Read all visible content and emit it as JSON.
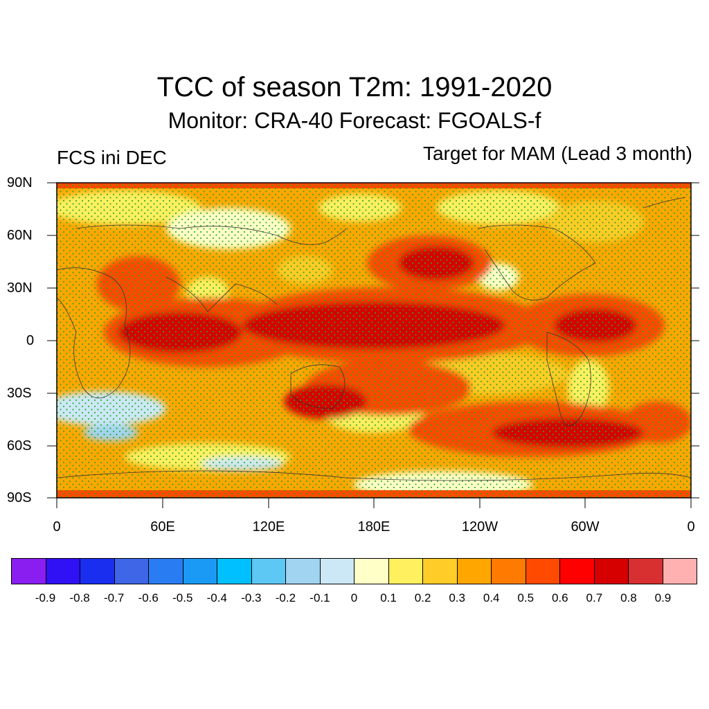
{
  "figure": {
    "title": "TCC of season T2m: 1991-2020",
    "subtitle": "Monitor: CRA-40   Forecast: FGOALS-f",
    "left_label": "FCS ini DEC",
    "right_label": "Target for MAM (Lead 3 month)"
  },
  "axes": {
    "y_ticks": [
      "90N",
      "60N",
      "30N",
      "0",
      "30S",
      "60S",
      "90S"
    ],
    "x_ticks": [
      "0",
      "60E",
      "120E",
      "180E",
      "120W",
      "60W",
      "0"
    ]
  },
  "colorbar": {
    "colors": [
      "#8a1ef0",
      "#3010f5",
      "#1a2ef0",
      "#3e66e6",
      "#2a7cf2",
      "#1a9af5",
      "#00c0ff",
      "#5ec8f5",
      "#a0d4f0",
      "#cce8f6",
      "#ffffc8",
      "#fff060",
      "#ffcc28",
      "#ffa600",
      "#ff7a00",
      "#ff4a00",
      "#ff0000",
      "#d60000",
      "#d83030",
      "#ffb0b0"
    ],
    "labels": [
      "-0.9",
      "-0.8",
      "-0.7",
      "-0.6",
      "-0.5",
      "-0.4",
      "-0.3",
      "-0.2",
      "-0.1",
      "0",
      "0.1",
      "0.2",
      "0.3",
      "0.4",
      "0.5",
      "0.6",
      "0.7",
      "0.8",
      "0.9"
    ]
  }
}
